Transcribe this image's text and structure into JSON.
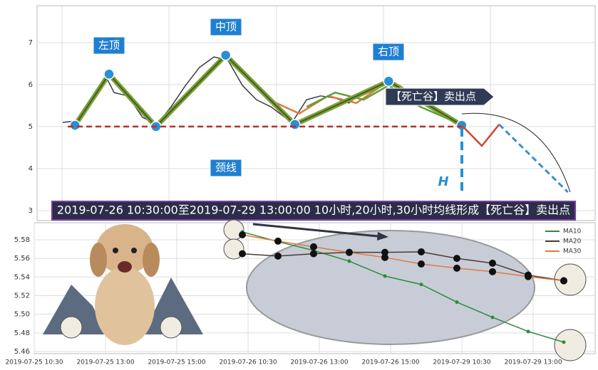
{
  "chart_data": [
    {
      "type": "line",
      "xlim": [
        0,
        100
      ],
      "ylim": [
        2.76,
        7.88
      ],
      "yticks": [
        3,
        4,
        5,
        6,
        7
      ],
      "grid": true,
      "series": [
        {
          "color": "#3a3a4a",
          "width": 1.5,
          "x": [
            4.6,
            7.4,
            10.0,
            12.5,
            13.8,
            16.3,
            18.9,
            21.5,
            24.0,
            26.6,
            29.1,
            31.7,
            34.2,
            36.8,
            39.3,
            41.9,
            44.4,
            45.7,
            48.3,
            50.8,
            53.4,
            55.9,
            58.5,
            61.0,
            62.9,
            64.9,
            67.4,
            70.0,
            72.5,
            76.1
          ],
          "values": [
            5.1,
            5.14,
            5.64,
            6.15,
            5.81,
            5.73,
            5.22,
            5.05,
            5.47,
            5.98,
            6.41,
            6.66,
            6.58,
            5.98,
            5.64,
            5.47,
            5.22,
            5.1,
            5.64,
            5.73,
            5.68,
            5.56,
            5.85,
            5.9,
            6.12,
            5.9,
            5.64,
            5.51,
            5.31,
            5.03
          ]
        },
        {
          "color": "#e07b39",
          "width": 2.5,
          "x": [
            42.9,
            47.0,
            52.1,
            57.2,
            62.3,
            64.9,
            70.0,
            75.1
          ],
          "values": [
            5.56,
            5.31,
            5.73,
            5.56,
            6.02,
            5.98,
            5.47,
            5.1
          ]
        },
        {
          "color": "#5f9e3a",
          "width": 2.5,
          "x": [
            48.3,
            53.4,
            58.5,
            63.0,
            68.7,
            75.1
          ],
          "values": [
            5.47,
            5.81,
            5.64,
            5.98,
            5.47,
            5.1
          ]
        },
        {
          "color": "#7aa33a",
          "width": 7,
          "inner": "#4a5a20",
          "markers": true,
          "x": [
            6.8,
            12.9,
            21.3,
            33.8,
            46.2,
            63.0,
            76.1
          ],
          "values": [
            5.03,
            6.25,
            5.0,
            6.7,
            5.05,
            6.08,
            5.03
          ]
        },
        {
          "color": "#b5312b",
          "width": 2.5,
          "dash": true,
          "x": [
            5.5,
            76.1
          ],
          "values": [
            5.0,
            5.0
          ]
        },
        {
          "color": "#d0452f",
          "width": 2.5,
          "x": [
            76.1,
            79.7,
            82.8
          ],
          "values": [
            5.03,
            4.54,
            5.05
          ]
        },
        {
          "color": "#3a8fd4",
          "width": 3,
          "dash": true,
          "x": [
            82.8,
            95.1
          ],
          "values": [
            5.05,
            3.44
          ]
        }
      ],
      "annotations": [
        "左顶",
        "中顶",
        "右顶",
        "颈线",
        "H",
        "【死亡谷】卖出点",
        "2019-07-26 10:30:00至2019-07-29 13:00:00 10小时,20小时,30小时均线形成【死亡谷】卖出点"
      ]
    },
    {
      "type": "line",
      "xlim": [
        0,
        15.74
      ],
      "ylim": [
        5.4577,
        5.5983
      ],
      "yticks": [
        5.46,
        5.48,
        {
          "value": 5.5,
          "label": "5.50"
        },
        5.52,
        5.54,
        5.56,
        5.58
      ],
      "xticks": [
        {
          "value": 0,
          "label": "2019-07-25 10:30"
        },
        {
          "value": 2,
          "label": "2019-07-25 13:00"
        },
        {
          "value": 4,
          "label": "2019-07-25 15:00"
        },
        {
          "value": 6,
          "label": "2019-07-26 10:30"
        },
        {
          "value": 8,
          "label": "2019-07-26 13:00"
        },
        {
          "value": 10,
          "label": "2019-07-26 15:00"
        },
        {
          "value": 12,
          "label": "2019-07-29 10:30"
        },
        {
          "value": 14,
          "label": "2019-07-29 13:00"
        }
      ],
      "grid": true,
      "x": [
        5.84,
        6.84,
        7.84,
        8.84,
        9.84,
        10.86,
        11.86,
        12.86,
        13.86,
        14.86
      ],
      "series": [
        {
          "name": "MA10",
          "color": "#2e8b3a",
          "marker": "small",
          "values": [
            5.5884,
            5.578,
            5.5685,
            5.557,
            5.541,
            5.532,
            5.513,
            5.4967,
            5.4815,
            5.47
          ]
        },
        {
          "name": "MA20",
          "color": "#4a3a33",
          "marker": "large",
          "values": [
            5.565,
            5.5625,
            5.565,
            5.5665,
            5.5665,
            5.567,
            5.56,
            5.5548,
            5.542,
            5.536
          ]
        },
        {
          "name": "MA30",
          "color": "#e07b39",
          "marker": "large",
          "values": [
            5.5853,
            5.5785,
            5.5724,
            5.5664,
            5.561,
            5.554,
            5.5495,
            5.5457,
            5.5404,
            5.5359
          ]
        }
      ],
      "legend": "upper right"
    }
  ]
}
